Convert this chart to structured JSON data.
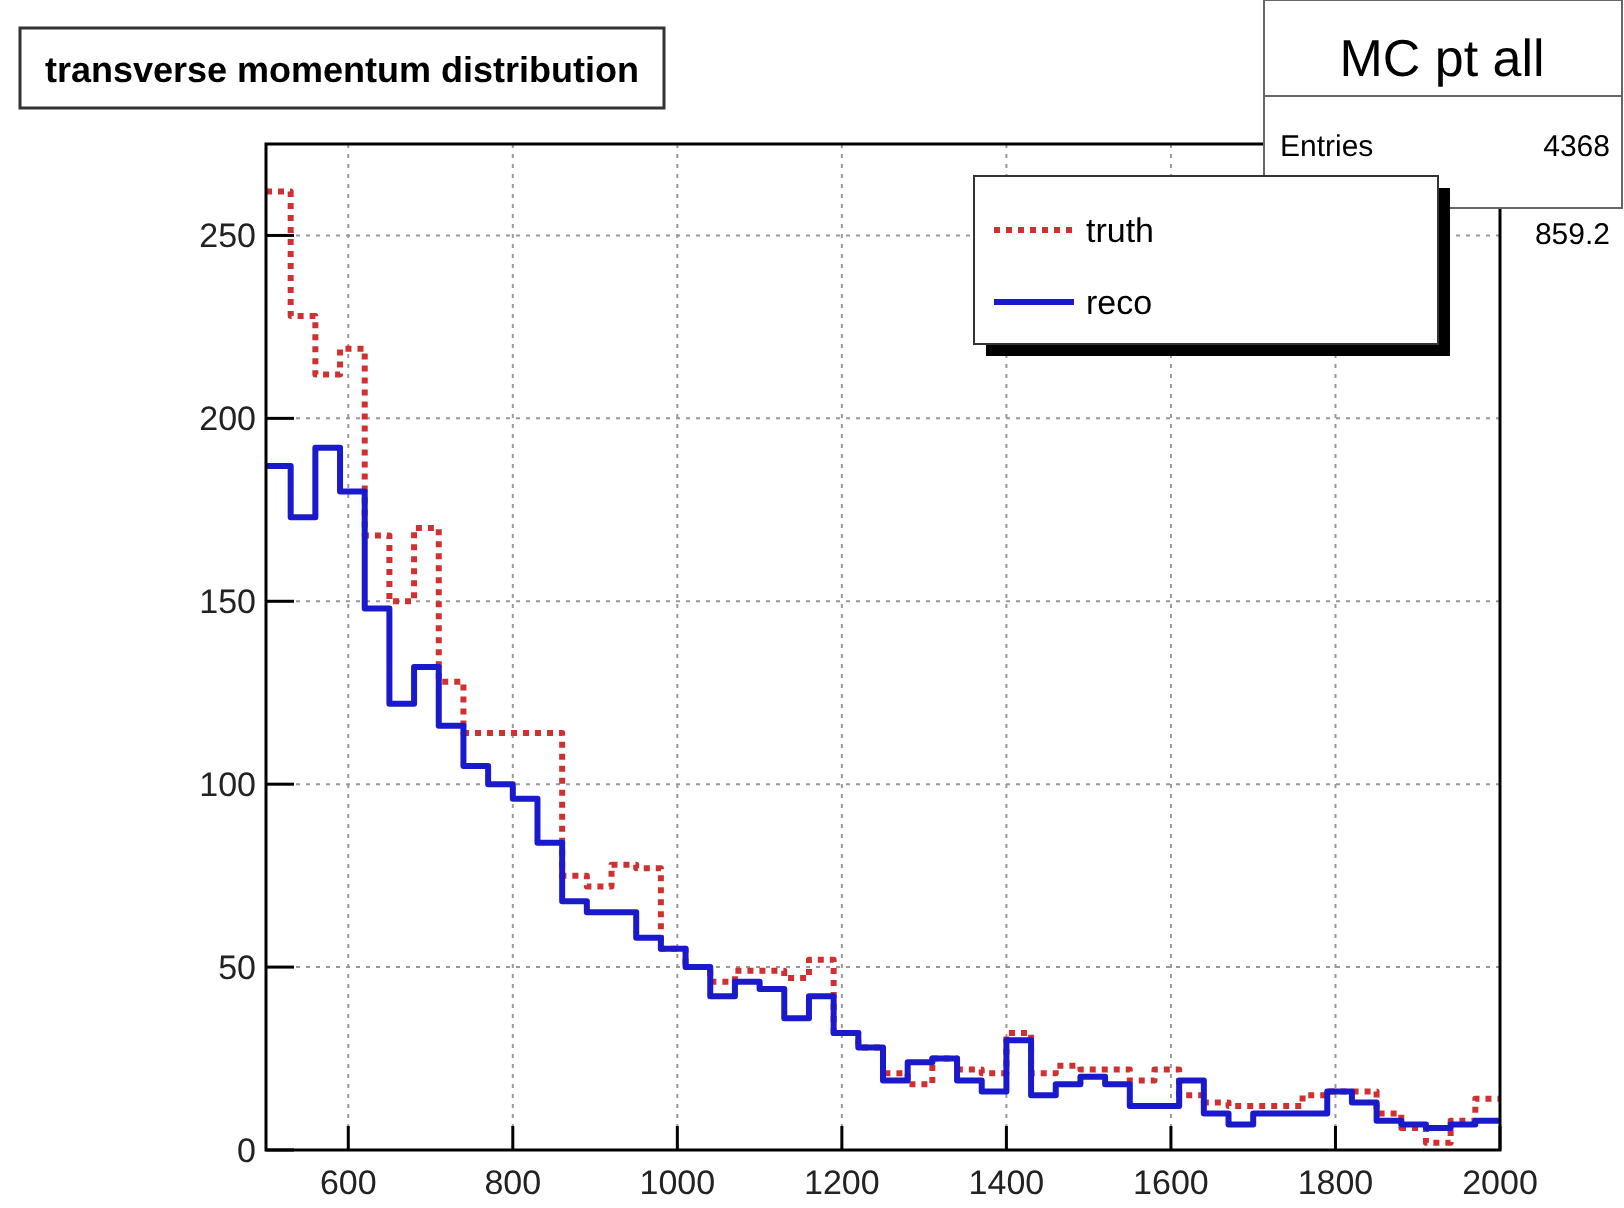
{
  "chart_data": {
    "type": "histogram",
    "title": "transverse momentum distribution",
    "bins": [
      500,
      530,
      560,
      590,
      620,
      650,
      680,
      710,
      740,
      770,
      800,
      830,
      860,
      890,
      920,
      950,
      980,
      1010,
      1040,
      1070,
      1100,
      1130,
      1160,
      1190,
      1220,
      1250,
      1280,
      1310,
      1340,
      1370,
      1400,
      1430,
      1460,
      1490,
      1520,
      1550,
      1580,
      1610,
      1640,
      1670,
      1700,
      1730,
      1760,
      1790,
      1820,
      1850,
      1880,
      1910,
      1940,
      1970,
      2000
    ],
    "series": [
      {
        "name": "truth",
        "color": "#d03030",
        "line_style": "dotted",
        "values": [
          262,
          228,
          212,
          219,
          168,
          150,
          170,
          128,
          114,
          114,
          114,
          114,
          75,
          72,
          78,
          77,
          55,
          50,
          46,
          49,
          49,
          47,
          52,
          32,
          28,
          21,
          18,
          25,
          22,
          21,
          32,
          21,
          23,
          22,
          22,
          19,
          22,
          15,
          13,
          12,
          12,
          12,
          15,
          16,
          16,
          10,
          6,
          2,
          8,
          14
        ]
      },
      {
        "name": "reco",
        "color": "#1a1acc",
        "line_style": "solid",
        "values": [
          187,
          173,
          192,
          180,
          148,
          122,
          132,
          116,
          105,
          100,
          96,
          84,
          68,
          65,
          65,
          58,
          55,
          50,
          42,
          46,
          44,
          36,
          42,
          32,
          28,
          19,
          24,
          25,
          19,
          16,
          30,
          15,
          18,
          20,
          18,
          12,
          12,
          19,
          10,
          7,
          10,
          10,
          10,
          16,
          13,
          8,
          7,
          6,
          7,
          8
        ]
      }
    ],
    "xlim": [
      500,
      2000
    ],
    "xticks": [
      600,
      800,
      1000,
      1200,
      1400,
      1600,
      1800,
      2000
    ],
    "ylim": [
      0,
      275
    ],
    "yticks": [
      0,
      50,
      100,
      150,
      200,
      250
    ],
    "grid": true,
    "legend": "top right",
    "annotations": [
      "MC pt all",
      "Entries",
      "4368",
      "859.2"
    ]
  }
}
